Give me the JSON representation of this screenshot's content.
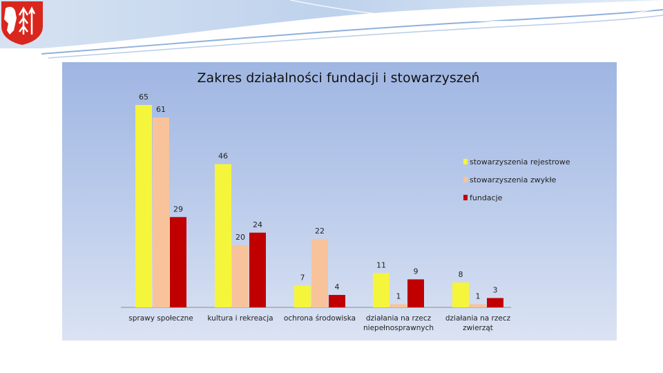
{
  "logo": {
    "name": "coat-of-arms-eagle-icon"
  },
  "chart_data": {
    "type": "bar",
    "title": "Zakres działalności fundacji i stowarzyszeń",
    "xlabel": "",
    "ylabel": "",
    "ylim": [
      0,
      65
    ],
    "grid": false,
    "legend_position": "right",
    "categories": [
      [
        "sprawy społeczne"
      ],
      [
        "kultura i rekreacja"
      ],
      [
        "ochrona środowiska"
      ],
      [
        "działania na rzecz",
        "niepełnosprawnych"
      ],
      [
        "działania na rzecz",
        "zwierząt"
      ]
    ],
    "series": [
      {
        "name": "stowarzyszenia rejestrowe",
        "color": "#f5f53c",
        "values": [
          65,
          46,
          7,
          11,
          8
        ]
      },
      {
        "name": "stowarzyszenia zwykłe",
        "color": "#f8c39a",
        "values": [
          61,
          20,
          22,
          1,
          1
        ]
      },
      {
        "name": "fundacje",
        "color": "#c00000",
        "values": [
          29,
          24,
          4,
          9,
          3
        ]
      }
    ]
  }
}
